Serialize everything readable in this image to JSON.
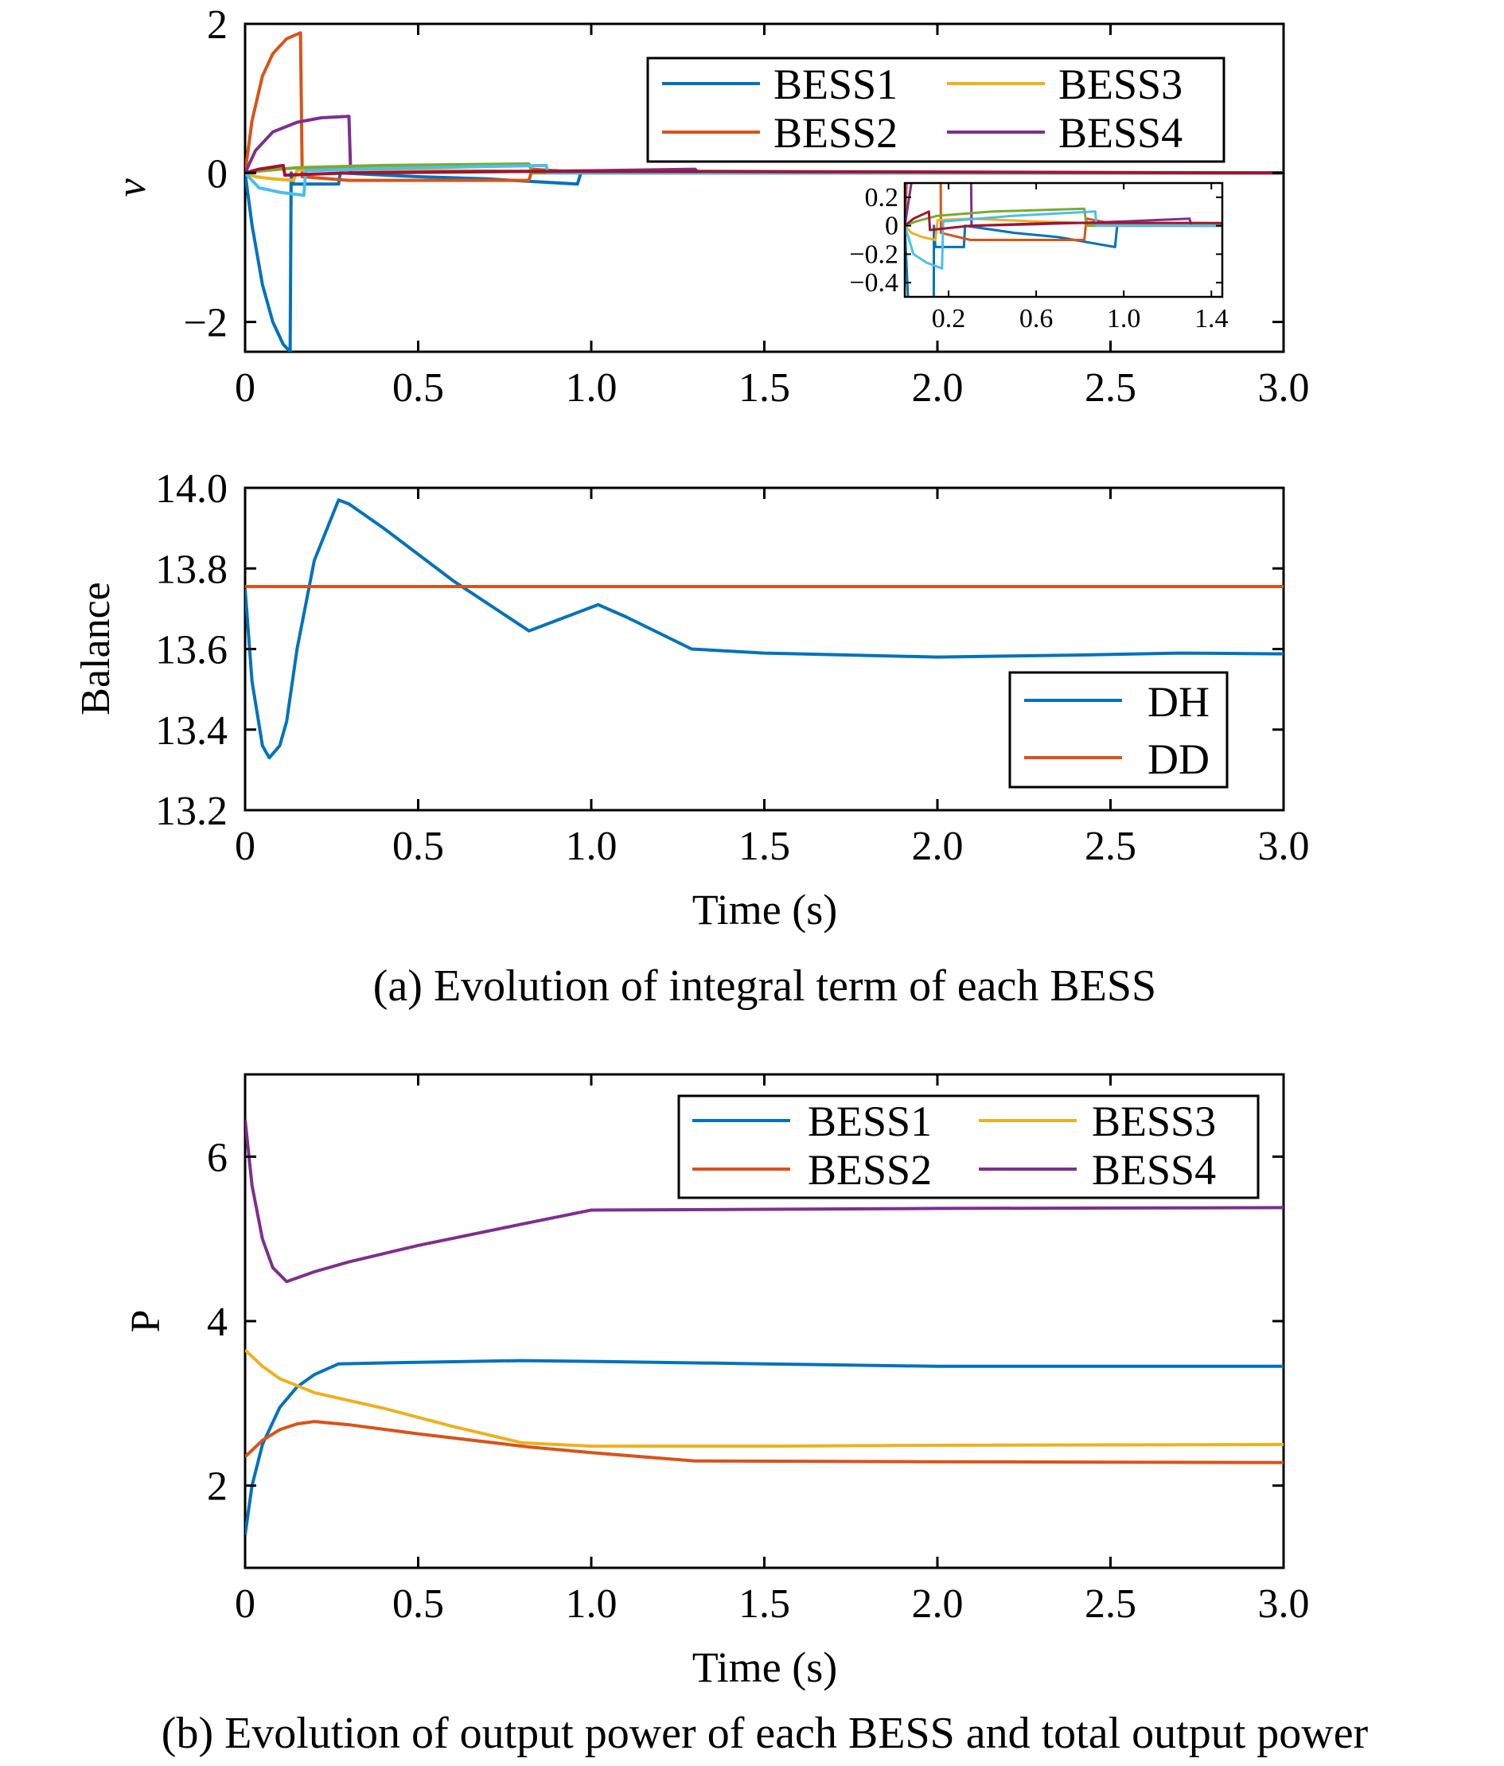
{
  "chart_data": [
    {
      "type": "line",
      "id": "v",
      "ylabel": "v",
      "xlabel": "",
      "xlim": [
        0,
        3.0
      ],
      "ylim": [
        -2.4,
        2
      ],
      "xticks": [
        0,
        0.5,
        1.0,
        1.5,
        2.0,
        2.5,
        3.0
      ],
      "xtick_labels": [
        "0",
        "0.5",
        "1.0",
        "1.5",
        "2.0",
        "2.5",
        "3.0"
      ],
      "yticks": [
        -2,
        0,
        2
      ],
      "ytick_labels": [
        "−2",
        "0",
        "2"
      ],
      "legend": {
        "placement": "top-right",
        "columns": 2,
        "entries": [
          "BESS1",
          "BESS2",
          "BESS3",
          "BESS4"
        ]
      },
      "caption": "(a) Evolution of integral term of each BESS",
      "series": [
        {
          "name": "BESS1",
          "color": "#0072BD",
          "points": [
            [
              0,
              0
            ],
            [
              0.02,
              -0.7
            ],
            [
              0.05,
              -1.5
            ],
            [
              0.08,
              -2.0
            ],
            [
              0.11,
              -2.3
            ],
            [
              0.13,
              -2.4
            ],
            [
              0.133,
              0
            ],
            [
              0.14,
              -0.15
            ],
            [
              0.27,
              -0.15
            ],
            [
              0.275,
              0
            ],
            [
              0.5,
              -0.05
            ],
            [
              0.7,
              -0.08
            ],
            [
              0.96,
              -0.15
            ],
            [
              0.97,
              0
            ],
            [
              3.0,
              0
            ]
          ]
        },
        {
          "name": "BESS2",
          "color": "#D95319",
          "points": [
            [
              0,
              0
            ],
            [
              0.02,
              0.7
            ],
            [
              0.05,
              1.3
            ],
            [
              0.08,
              1.6
            ],
            [
              0.12,
              1.8
            ],
            [
              0.16,
              1.88
            ],
            [
              0.165,
              -0.05
            ],
            [
              0.3,
              -0.1
            ],
            [
              0.5,
              -0.1
            ],
            [
              0.82,
              -0.1
            ],
            [
              0.83,
              0.05
            ],
            [
              1.0,
              0
            ],
            [
              3.0,
              0
            ]
          ]
        },
        {
          "name": "BESS3",
          "color": "#EDB120",
          "points": [
            [
              0,
              0
            ],
            [
              0.03,
              -0.05
            ],
            [
              0.08,
              -0.08
            ],
            [
              0.14,
              -0.1
            ],
            [
              0.15,
              0.04
            ],
            [
              0.3,
              0.05
            ],
            [
              0.6,
              0.03
            ],
            [
              1.0,
              0.01
            ],
            [
              3.0,
              0
            ]
          ]
        },
        {
          "name": "BESS4",
          "color": "#7E2F8E",
          "points": [
            [
              0,
              0
            ],
            [
              0.03,
              0.3
            ],
            [
              0.08,
              0.55
            ],
            [
              0.15,
              0.68
            ],
            [
              0.22,
              0.74
            ],
            [
              0.3,
              0.76
            ],
            [
              0.305,
              0
            ],
            [
              0.6,
              0.01
            ],
            [
              1.0,
              0.03
            ],
            [
              1.3,
              0.05
            ],
            [
              1.31,
              0
            ],
            [
              3.0,
              0
            ]
          ]
        },
        {
          "name": "",
          "color": "#77AC30",
          "points": [
            [
              0,
              0
            ],
            [
              0.05,
              0.03
            ],
            [
              0.15,
              0.07
            ],
            [
              0.4,
              0.1
            ],
            [
              0.82,
              0.12
            ],
            [
              0.83,
              0
            ],
            [
              3.0,
              0
            ]
          ]
        },
        {
          "name": "",
          "color": "#4DBEEE",
          "points": [
            [
              0,
              0
            ],
            [
              0.04,
              -0.2
            ],
            [
              0.1,
              -0.26
            ],
            [
              0.17,
              -0.3
            ],
            [
              0.175,
              0.03
            ],
            [
              0.5,
              0.07
            ],
            [
              0.87,
              0.1
            ],
            [
              0.875,
              0
            ],
            [
              3.0,
              0
            ]
          ]
        },
        {
          "name": "",
          "color": "#A2142F",
          "points": [
            [
              0,
              0
            ],
            [
              0.04,
              0.05
            ],
            [
              0.11,
              0.1
            ],
            [
              0.115,
              -0.03
            ],
            [
              0.3,
              0
            ],
            [
              0.7,
              0.02
            ],
            [
              1.35,
              0.02
            ],
            [
              3.0,
              0
            ]
          ]
        }
      ],
      "inset": {
        "xlim": [
          0,
          1.45
        ],
        "ylim": [
          -0.5,
          0.3
        ],
        "xticks": [
          0.2,
          0.6,
          1.0,
          1.4
        ],
        "xtick_labels": [
          "0.2",
          "0.6",
          "1.0",
          "1.4"
        ],
        "yticks": [
          0.2,
          0,
          -0.2,
          -0.4
        ],
        "ytick_labels": [
          "0.2",
          "0",
          "−0.2",
          "−0.4"
        ]
      }
    },
    {
      "type": "line",
      "id": "balance",
      "ylabel": "Balance",
      "xlabel": "Time (s)",
      "xlim": [
        0,
        3.0
      ],
      "ylim": [
        13.2,
        14.0
      ],
      "xticks": [
        0,
        0.5,
        1.0,
        1.5,
        2.0,
        2.5,
        3.0
      ],
      "xtick_labels": [
        "0",
        "0.5",
        "1.0",
        "1.5",
        "2.0",
        "2.5",
        "3.0"
      ],
      "yticks": [
        13.2,
        13.4,
        13.6,
        13.8,
        14.0
      ],
      "ytick_labels": [
        "13.2",
        "13.4",
        "13.6",
        "13.8",
        "14.0"
      ],
      "legend": {
        "placement": "bottom-right",
        "columns": 1,
        "entries": [
          "DH",
          "DD"
        ]
      },
      "series": [
        {
          "name": "DH",
          "color": "#0072BD",
          "points": [
            [
              0,
              13.75
            ],
            [
              0.02,
              13.52
            ],
            [
              0.05,
              13.36
            ],
            [
              0.07,
              13.33
            ],
            [
              0.1,
              13.36
            ],
            [
              0.12,
              13.42
            ],
            [
              0.15,
              13.6
            ],
            [
              0.2,
              13.82
            ],
            [
              0.27,
              13.97
            ],
            [
              0.3,
              13.96
            ],
            [
              0.4,
              13.9
            ],
            [
              0.6,
              13.77
            ],
            [
              0.82,
              13.645
            ],
            [
              1.02,
              13.71
            ],
            [
              1.1,
              13.68
            ],
            [
              1.29,
              13.6
            ],
            [
              1.5,
              13.59
            ],
            [
              2.0,
              13.58
            ],
            [
              2.4,
              13.585
            ],
            [
              2.7,
              13.59
            ],
            [
              3.0,
              13.588
            ]
          ]
        },
        {
          "name": "DD",
          "color": "#D95319",
          "points": [
            [
              0,
              13.755
            ],
            [
              3.0,
              13.755
            ]
          ]
        }
      ]
    },
    {
      "type": "line",
      "id": "power",
      "ylabel": "P",
      "xlabel": "Time (s)",
      "xlim": [
        0,
        3.0
      ],
      "ylim": [
        1,
        7
      ],
      "xticks": [
        0,
        0.5,
        1.0,
        1.5,
        2.0,
        2.5,
        3.0
      ],
      "xtick_labels": [
        "0",
        "0.5",
        "1.0",
        "1.5",
        "2.0",
        "2.5",
        "3.0"
      ],
      "yticks": [
        2,
        4,
        6
      ],
      "ytick_labels": [
        "2",
        "4",
        "6"
      ],
      "legend": {
        "placement": "top-right",
        "columns": 2,
        "entries": [
          "BESS1",
          "BESS2",
          "BESS3",
          "BESS4"
        ]
      },
      "caption": "(b) Evolution of output power of each BESS and total output power",
      "series": [
        {
          "name": "BESS1",
          "color": "#0072BD",
          "points": [
            [
              0,
              1.4
            ],
            [
              0.02,
              2.0
            ],
            [
              0.05,
              2.5
            ],
            [
              0.1,
              2.95
            ],
            [
              0.15,
              3.2
            ],
            [
              0.2,
              3.35
            ],
            [
              0.27,
              3.48
            ],
            [
              0.5,
              3.5
            ],
            [
              0.8,
              3.52
            ],
            [
              1.0,
              3.51
            ],
            [
              1.5,
              3.48
            ],
            [
              2.0,
              3.45
            ],
            [
              3.0,
              3.45
            ]
          ]
        },
        {
          "name": "BESS2",
          "color": "#D95319",
          "points": [
            [
              0,
              2.35
            ],
            [
              0.05,
              2.55
            ],
            [
              0.1,
              2.68
            ],
            [
              0.15,
              2.75
            ],
            [
              0.2,
              2.78
            ],
            [
              0.3,
              2.74
            ],
            [
              0.5,
              2.63
            ],
            [
              0.82,
              2.47
            ],
            [
              1.0,
              2.4
            ],
            [
              1.3,
              2.3
            ],
            [
              2.0,
              2.29
            ],
            [
              3.0,
              2.28
            ]
          ]
        },
        {
          "name": "BESS3",
          "color": "#EDB120",
          "points": [
            [
              0,
              3.65
            ],
            [
              0.05,
              3.45
            ],
            [
              0.1,
              3.3
            ],
            [
              0.2,
              3.13
            ],
            [
              0.4,
              2.94
            ],
            [
              0.6,
              2.72
            ],
            [
              0.8,
              2.52
            ],
            [
              1.0,
              2.48
            ],
            [
              1.5,
              2.48
            ],
            [
              2.0,
              2.49
            ],
            [
              3.0,
              2.5
            ]
          ]
        },
        {
          "name": "BESS4",
          "color": "#7E2F8E",
          "points": [
            [
              0,
              6.45
            ],
            [
              0.02,
              5.65
            ],
            [
              0.05,
              5.0
            ],
            [
              0.08,
              4.65
            ],
            [
              0.12,
              4.48
            ],
            [
              0.2,
              4.6
            ],
            [
              0.3,
              4.72
            ],
            [
              0.5,
              4.92
            ],
            [
              0.8,
              5.18
            ],
            [
              1.0,
              5.35
            ],
            [
              1.5,
              5.36
            ],
            [
              2.0,
              5.37
            ],
            [
              3.0,
              5.38
            ]
          ]
        }
      ]
    }
  ]
}
